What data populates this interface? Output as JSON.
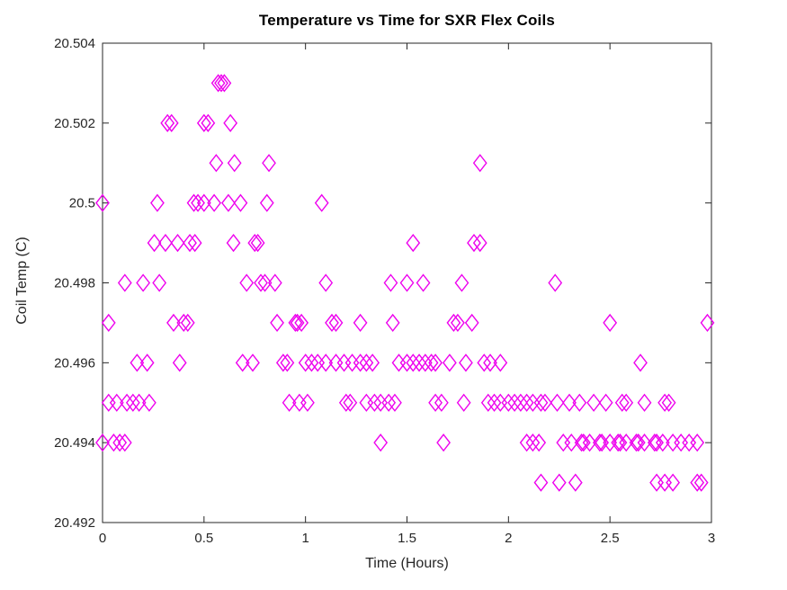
{
  "figure": {
    "background_color": "#FFFFFF",
    "axis_color": "#262626",
    "marker_color": "#EE00EE"
  },
  "chart_data": {
    "type": "scatter",
    "title": "Temperature vs Time for SXR Flex Coils",
    "xlabel": "Time (Hours)",
    "ylabel": "Coil Temp (C)",
    "xlim": [
      0,
      3
    ],
    "ylim": [
      20.492,
      20.504
    ],
    "xticks": [
      0,
      0.5,
      1,
      1.5,
      2,
      2.5,
      3
    ],
    "xtick_labels": [
      "0",
      "0.5",
      "1",
      "1.5",
      "2",
      "2.5",
      "3"
    ],
    "yticks": [
      20.492,
      20.494,
      20.496,
      20.498,
      20.5,
      20.502,
      20.504
    ],
    "ytick_labels": [
      "20.492",
      "20.494",
      "20.496",
      "20.498",
      "20.5",
      "20.502",
      "20.504"
    ],
    "grid": false,
    "legend": null,
    "marker": {
      "shape": "diamond-outline",
      "color": "#EE00EE",
      "half_width": 7,
      "half_height": 9,
      "stroke_width": 1.4
    },
    "series": [
      {
        "name": "Coil Temp",
        "rows": [
          {
            "temp": 20.503,
            "times": [
              0.57,
              0.585,
              0.6
            ]
          },
          {
            "temp": 20.502,
            "times": [
              0.32,
              0.34,
              0.5,
              0.52,
              0.63
            ]
          },
          {
            "temp": 20.501,
            "times": [
              0.56,
              0.65,
              0.82,
              1.86
            ]
          },
          {
            "temp": 20.5,
            "times": [
              0.0,
              0.27,
              0.45,
              0.47,
              0.5,
              0.55,
              0.62,
              0.68,
              0.81,
              1.08
            ]
          },
          {
            "temp": 20.499,
            "times": [
              0.255,
              0.31,
              0.37,
              0.43,
              0.455,
              0.645,
              0.75,
              0.765,
              1.53,
              1.83,
              1.86
            ]
          },
          {
            "temp": 20.498,
            "times": [
              0.11,
              0.2,
              0.28,
              0.71,
              0.78,
              0.8,
              0.85,
              1.1,
              1.42,
              1.5,
              1.58,
              1.77,
              2.23
            ]
          },
          {
            "temp": 20.497,
            "times": [
              0.03,
              0.35,
              0.4,
              0.42,
              0.86,
              0.95,
              0.96,
              0.98,
              1.13,
              1.15,
              1.27,
              1.43,
              1.73,
              1.75,
              1.82,
              2.5,
              2.98
            ]
          },
          {
            "temp": 20.496,
            "times": [
              0.17,
              0.22,
              0.38,
              0.69,
              0.74,
              0.89,
              0.91,
              1.0,
              1.03,
              1.06,
              1.1,
              1.15,
              1.19,
              1.23,
              1.27,
              1.3,
              1.33,
              1.46,
              1.5,
              1.53,
              1.56,
              1.59,
              1.62,
              1.64,
              1.71,
              1.79,
              1.88,
              1.91,
              1.96,
              2.65
            ]
          },
          {
            "temp": 20.495,
            "times": [
              0.03,
              0.07,
              0.12,
              0.15,
              0.18,
              0.23,
              0.92,
              0.97,
              1.01,
              1.2,
              1.22,
              1.3,
              1.34,
              1.37,
              1.41,
              1.44,
              1.64,
              1.67,
              1.78,
              1.9,
              1.93,
              1.96,
              2.0,
              2.03,
              2.06,
              2.09,
              2.12,
              2.16,
              2.18,
              2.24,
              2.3,
              2.35,
              2.42,
              2.48,
              2.56,
              2.58,
              2.67,
              2.77,
              2.79
            ]
          },
          {
            "temp": 20.494,
            "times": [
              0.0,
              0.055,
              0.085,
              0.11,
              1.37,
              1.68,
              2.09,
              2.12,
              2.15,
              2.27,
              2.31,
              2.36,
              2.37,
              2.4,
              2.45,
              2.46,
              2.5,
              2.54,
              2.55,
              2.58,
              2.63,
              2.64,
              2.67,
              2.72,
              2.73,
              2.76,
              2.81,
              2.85,
              2.89,
              2.93
            ]
          },
          {
            "temp": 20.493,
            "times": [
              2.16,
              2.25,
              2.33,
              2.73,
              2.77,
              2.81,
              2.93,
              2.95
            ]
          }
        ]
      }
    ]
  }
}
